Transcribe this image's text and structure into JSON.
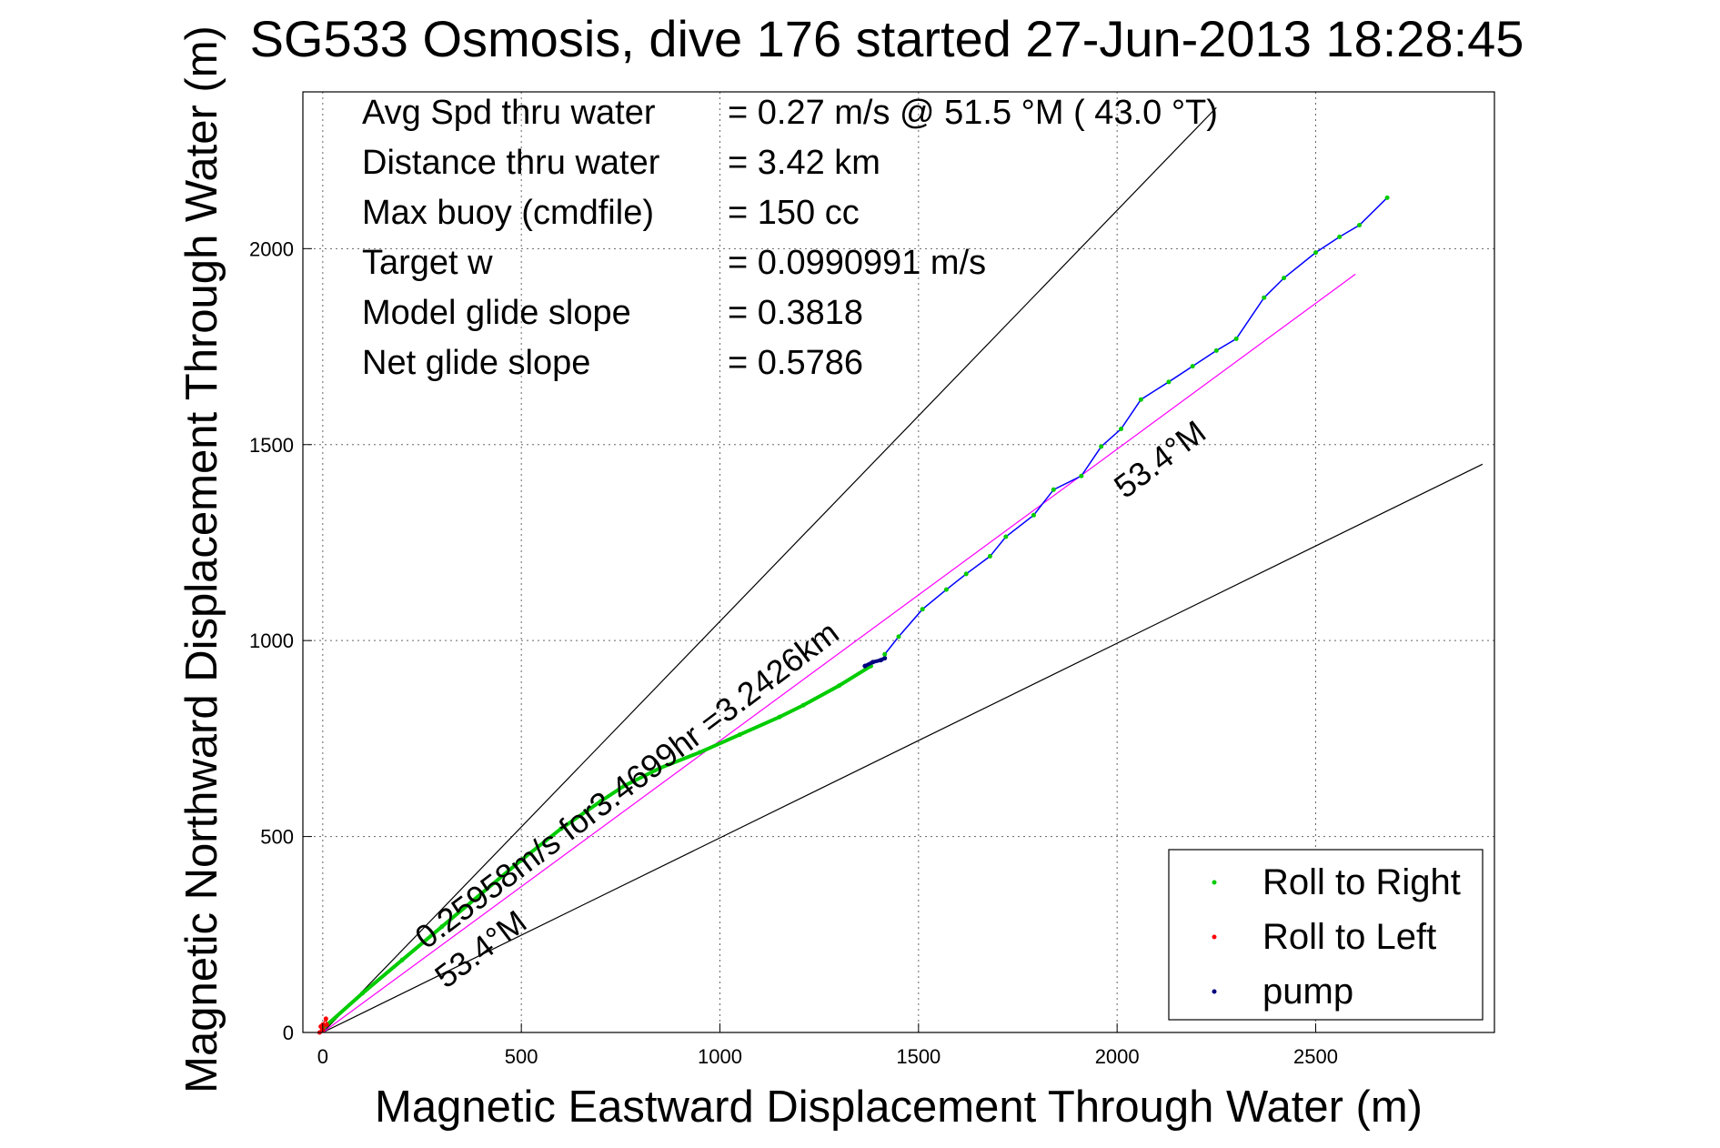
{
  "chart_data": {
    "type": "line",
    "title": "SG533 Osmosis, dive 176 started 27-Jun-2013 18:28:45",
    "xlabel": "Magnetic Eastward Displacement Through Water (m)",
    "ylabel": "Magnetic Northward Displacement Through Water (m)",
    "xlim": [
      -50,
      2950
    ],
    "ylim": [
      0,
      2400
    ],
    "xticks": [
      0,
      500,
      1000,
      1500,
      2000,
      2500
    ],
    "yticks": [
      0,
      500,
      1000,
      1500,
      2000
    ],
    "grid": true,
    "legend_position": "bottom-right",
    "stats": [
      {
        "label": "Avg Spd thru water",
        "value": "=  0.27 m/s @  51.5 °M ( 43.0 °T)"
      },
      {
        "label": "Distance thru water",
        "value": "=  3.42 km"
      },
      {
        "label": "Max buoy (cmdfile)",
        "value": "= 150 cc"
      },
      {
        "label": "Target w",
        "value": "= 0.0990991 m/s"
      },
      {
        "label": "Model glide slope",
        "value": "= 0.3818"
      },
      {
        "label": "Net glide slope",
        "value": "= 0.5786"
      }
    ],
    "annotations": [
      {
        "text": "0.25958m/s for3.4699hr =3.2426km",
        "x": 260,
        "y": 210,
        "angle_deg": 37
      },
      {
        "text": "53.4°M",
        "x": 310,
        "y": 110,
        "angle_deg": 37
      },
      {
        "text": "53.4°M",
        "x": 2020,
        "y": 1360,
        "angle_deg": 37
      }
    ],
    "reference_lines": [
      {
        "name": "upper bound",
        "color": "#000000",
        "x": [
          0,
          2250
        ],
        "y": [
          0,
          2360
        ]
      },
      {
        "name": "lower bound",
        "color": "#000000",
        "x": [
          0,
          2920
        ],
        "y": [
          0,
          1450
        ]
      },
      {
        "name": "net track 53.4°M",
        "color": "#ff00ff",
        "x": [
          0,
          2600
        ],
        "y": [
          0,
          1935
        ]
      }
    ],
    "series": [
      {
        "name": "Roll to Right",
        "color": "#00cc00",
        "x": [
          0,
          100,
          200,
          300,
          400,
          500,
          600,
          700,
          760,
          850,
          950,
          1050,
          1150,
          1210,
          1300,
          1380
        ],
        "y": [
          10,
          100,
          185,
          270,
          355,
          440,
          520,
          590,
          630,
          675,
          715,
          760,
          805,
          835,
          885,
          935
        ]
      },
      {
        "name": "Roll to Left",
        "color": "#ff0000",
        "x": [
          -8,
          0,
          8,
          10,
          0,
          -5
        ],
        "y": [
          0,
          20,
          35,
          20,
          5,
          15
        ]
      },
      {
        "name": "pump",
        "color": "#000080",
        "x": [
          1365,
          1385,
          1405,
          1415
        ],
        "y": [
          935,
          945,
          950,
          955
        ]
      },
      {
        "name": "dive track",
        "color": "#0000ff",
        "x": [
          1415,
          1450,
          1510,
          1570,
          1620,
          1680,
          1720,
          1790,
          1840,
          1910,
          1960,
          2010,
          2060,
          2130,
          2190,
          2250,
          2300,
          2370,
          2420,
          2500,
          2560,
          2610,
          2680
        ],
        "y": [
          965,
          1010,
          1080,
          1130,
          1170,
          1215,
          1265,
          1320,
          1385,
          1420,
          1495,
          1540,
          1615,
          1660,
          1700,
          1740,
          1770,
          1875,
          1925,
          1990,
          2030,
          2060,
          2130
        ]
      }
    ],
    "legend": [
      {
        "label": "Roll to Right",
        "color": "#00cc00"
      },
      {
        "label": "Roll to Left",
        "color": "#ff0000"
      },
      {
        "label": "pump",
        "color": "#000080"
      }
    ]
  }
}
